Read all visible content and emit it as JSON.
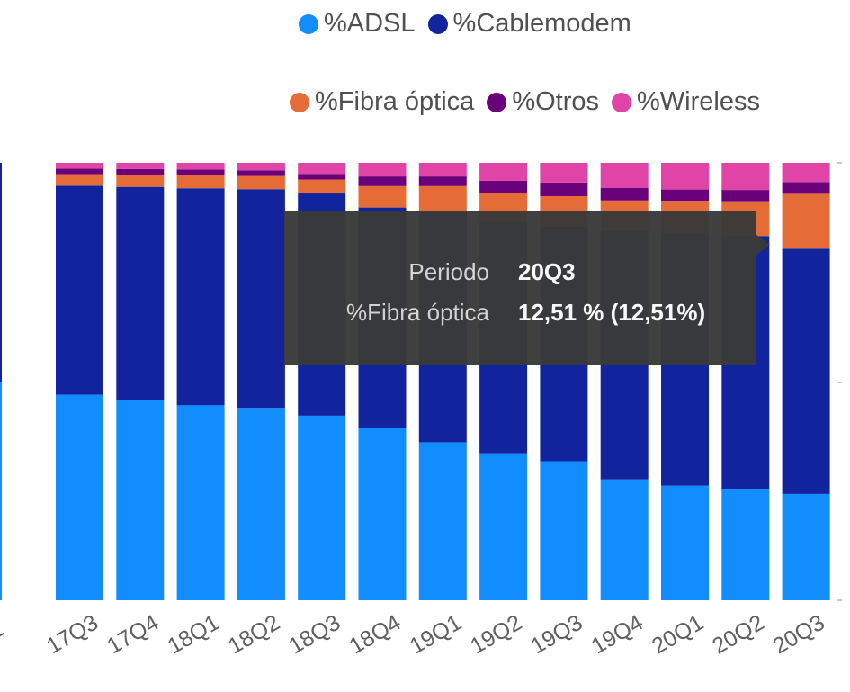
{
  "legend": [
    {
      "label": "%ADSL",
      "color": "#118DFF"
    },
    {
      "label": "%Cablemodem",
      "color": "#12239E"
    },
    {
      "label": "%Fibra óptica",
      "color": "#E66C37"
    },
    {
      "label": "%Otros",
      "color": "#6B007B"
    },
    {
      "label": "%Wireless",
      "color": "#E044A7"
    }
  ],
  "tooltip": {
    "rows": [
      {
        "key": "Periodo",
        "value": "20Q3"
      },
      {
        "key": "%Fibra óptica",
        "value": "12,51 % (12,51%)"
      }
    ]
  },
  "chart_data": {
    "type": "bar",
    "stacked": true,
    "percent": true,
    "categories": [
      "17Q3",
      "17Q4",
      "18Q1",
      "18Q2",
      "18Q3",
      "18Q4",
      "19Q1",
      "19Q2",
      "19Q3",
      "19Q4",
      "20Q1",
      "20Q2",
      "20Q3"
    ],
    "series": [
      {
        "name": "%ADSL",
        "color": "#118DFF",
        "values": [
          47.0,
          45.8,
          44.6,
          44.0,
          42.2,
          39.3,
          36.1,
          33.6,
          31.8,
          27.6,
          26.2,
          25.5,
          24.3
        ]
      },
      {
        "name": "%Cablemodem",
        "color": "#12239E",
        "values": [
          47.8,
          48.7,
          49.6,
          50.0,
          50.8,
          50.5,
          52.6,
          52.9,
          53.6,
          56.8,
          57.8,
          57.8,
          56.1
        ]
      },
      {
        "name": "%Fibra óptica",
        "color": "#E66C37",
        "values": [
          2.6,
          2.8,
          3.0,
          3.0,
          3.2,
          4.9,
          6.0,
          6.5,
          7.0,
          7.0,
          7.3,
          7.9,
          12.51
        ]
      },
      {
        "name": "%Otros",
        "color": "#6B007B",
        "values": [
          1.3,
          1.3,
          1.3,
          1.3,
          1.3,
          2.2,
          2.2,
          2.9,
          3.1,
          2.9,
          2.6,
          2.6,
          2.7
        ]
      },
      {
        "name": "%Wireless",
        "color": "#E044A7",
        "values": [
          1.3,
          1.4,
          1.5,
          1.7,
          2.5,
          3.1,
          3.1,
          4.1,
          4.5,
          5.7,
          6.1,
          6.2,
          4.39
        ]
      }
    ],
    "ylim": [
      0,
      100
    ],
    "legend_position": "top-right",
    "grid": false
  }
}
